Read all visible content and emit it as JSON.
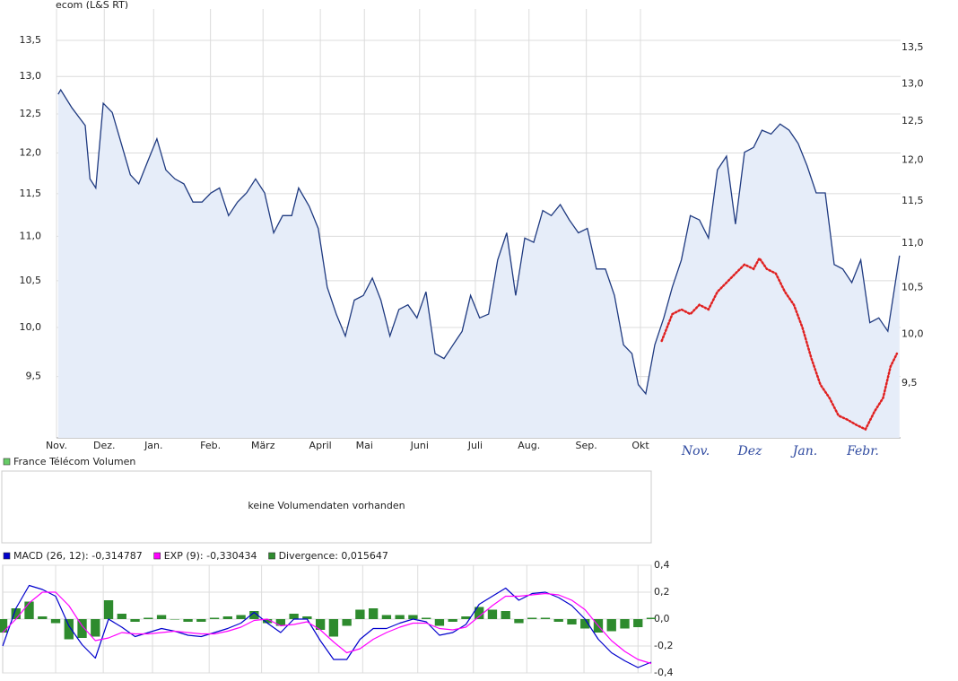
{
  "chart_data": [
    {
      "type": "line",
      "title": "ecom (L&S RT)",
      "log_scale": true,
      "grid": true,
      "xlim": [
        0,
        15.9
      ],
      "ylim": [
        8.91,
        13.95
      ],
      "y2lim": [
        8.97,
        14.06
      ],
      "yticks": [
        {
          "value": 9.5,
          "label": "9,5"
        },
        {
          "value": 10,
          "label": "10,0"
        },
        {
          "value": 10.5,
          "label": "10,5"
        },
        {
          "value": 11,
          "label": "11,0"
        },
        {
          "value": 11.5,
          "label": "11,5"
        },
        {
          "value": 12,
          "label": "12,0"
        },
        {
          "value": 12.5,
          "label": "12,5"
        },
        {
          "value": 13,
          "label": "13,0"
        },
        {
          "value": 13.5,
          "label": "13,5"
        }
      ],
      "y2ticks": [
        {
          "value": 9.5,
          "label": "9,5"
        },
        {
          "value": 10,
          "label": "10,0"
        },
        {
          "value": 10.5,
          "label": "10,5"
        },
        {
          "value": 11,
          "label": "11,0"
        },
        {
          "value": 11.5,
          "label": "11,5"
        },
        {
          "value": 12,
          "label": "12,0"
        },
        {
          "value": 12.5,
          "label": "12,5"
        },
        {
          "value": 13,
          "label": "13,0"
        },
        {
          "value": 13.5,
          "label": "13,5"
        }
      ],
      "xticks": [
        {
          "value": 0,
          "label": "Nov."
        },
        {
          "value": 0.9,
          "label": "Dez."
        },
        {
          "value": 1.83,
          "label": "Jan."
        },
        {
          "value": 2.9,
          "label": "Feb."
        },
        {
          "value": 3.89,
          "label": "März"
        },
        {
          "value": 4.97,
          "label": "April"
        },
        {
          "value": 5.8,
          "label": "Mai"
        },
        {
          "value": 6.84,
          "label": "Juni"
        },
        {
          "value": 7.89,
          "label": "Juli"
        },
        {
          "value": 8.9,
          "label": "Aug."
        },
        {
          "value": 9.98,
          "label": "Sep."
        },
        {
          "value": 11,
          "label": "Okt"
        }
      ],
      "handwritten_xticks": [
        {
          "value": 12.04,
          "label": "Nov."
        },
        {
          "value": 13.06,
          "label": "Dez"
        },
        {
          "value": 14.1,
          "label": "Jan."
        },
        {
          "value": 15.19,
          "label": "Febr."
        }
      ],
      "x": [
        0.03,
        0.08,
        0.29,
        0.54,
        0.63,
        0.74,
        0.88,
        1.05,
        1.22,
        1.39,
        1.55,
        1.72,
        1.89,
        2.06,
        2.23,
        2.4,
        2.57,
        2.74,
        2.91,
        3.07,
        3.24,
        3.41,
        3.58,
        3.75,
        3.92,
        4.09,
        4.26,
        4.43,
        4.56,
        4.76,
        4.93,
        5.1,
        5.27,
        5.44,
        5.61,
        5.78,
        5.95,
        6.11,
        6.28,
        6.45,
        6.62,
        6.79,
        6.96,
        7.13,
        7.3,
        7.47,
        7.64,
        7.8,
        7.97,
        8.14,
        8.31,
        8.48,
        8.65,
        8.82,
        8.99,
        9.16,
        9.32,
        9.49,
        9.66,
        9.83,
        10.0,
        10.17,
        10.34,
        10.51,
        10.68,
        10.84,
        10.96,
        11.1,
        11.27,
        11.44,
        11.6,
        11.77,
        11.94,
        12.11,
        12.28,
        12.45,
        12.62,
        12.79,
        12.96,
        13.13,
        13.29,
        13.46,
        13.63,
        13.8,
        13.97,
        14.14,
        14.31,
        14.48,
        14.65,
        14.81,
        14.98,
        15.15,
        15.32,
        15.49,
        15.66,
        15.88
      ],
      "series": [
        {
          "color": "#1f3a80",
          "fill": "#e6edf9",
          "values": [
            12.76,
            12.82,
            12.58,
            12.35,
            11.68,
            11.57,
            12.64,
            12.52,
            12.12,
            11.73,
            11.62,
            11.9,
            12.18,
            11.79,
            11.68,
            11.62,
            11.4,
            11.4,
            11.51,
            11.57,
            11.24,
            11.4,
            11.51,
            11.68,
            11.51,
            11.04,
            11.24,
            11.24,
            11.57,
            11.35,
            11.09,
            10.43,
            10.14,
            9.91,
            10.29,
            10.34,
            10.53,
            10.29,
            9.91,
            10.19,
            10.24,
            10.1,
            10.38,
            9.73,
            9.68,
            9.82,
            9.96,
            10.34,
            10.1,
            10.14,
            10.73,
            11.04,
            10.34,
            10.98,
            10.93,
            11.3,
            11.24,
            11.37,
            11.19,
            11.04,
            11.09,
            10.63,
            10.63,
            10.34,
            9.82,
            9.73,
            9.42,
            9.33,
            9.82,
            10.1,
            10.43,
            10.73,
            11.24,
            11.19,
            10.98,
            11.79,
            11.96,
            11.14,
            12.01,
            12.07,
            12.29,
            12.24,
            12.37,
            12.29,
            12.12,
            11.84,
            11.51,
            11.51,
            10.68,
            10.63,
            10.48,
            10.73,
            10.05,
            10.1,
            9.96,
            10.78
          ]
        },
        {
          "color": "#e02020",
          "style": "dotted",
          "x": [
            11.4,
            11.6,
            11.77,
            11.94,
            12.11,
            12.28,
            12.45,
            12.62,
            12.79,
            12.96,
            13.13,
            13.24,
            13.38,
            13.55,
            13.72,
            13.89,
            14.05,
            14.22,
            14.39,
            14.56,
            14.73,
            14.9,
            15.07,
            15.24,
            15.41,
            15.57,
            15.71,
            15.83
          ],
          "values": [
            9.86,
            10.14,
            10.19,
            10.14,
            10.24,
            10.19,
            10.38,
            10.48,
            10.58,
            10.68,
            10.63,
            10.75,
            10.63,
            10.58,
            10.38,
            10.24,
            10.0,
            9.68,
            9.42,
            9.29,
            9.12,
            9.08,
            9.03,
            8.99,
            9.16,
            9.29,
            9.6,
            9.73
          ]
        }
      ]
    },
    {
      "type": "message",
      "legend": [
        {
          "name": "France Télécom Volumen",
          "color": "#66cc66"
        }
      ],
      "message": "keine Volumendaten vorhanden"
    },
    {
      "type": "macd",
      "grid": true,
      "xlim": [
        -1.0,
        11.25
      ],
      "ylim": [
        -0.4,
        0.4
      ],
      "yticks": [
        {
          "value": -0.4,
          "label": "-0,4"
        },
        {
          "value": -0.2,
          "label": "-0,2"
        },
        {
          "value": 0,
          "label": "0,0"
        },
        {
          "value": 0.2,
          "label": "0,2"
        },
        {
          "value": 0.4,
          "label": "0,4"
        }
      ],
      "x": [
        -1,
        -0.75,
        -0.5,
        -0.25,
        0,
        0.25,
        0.5,
        0.75,
        1,
        1.25,
        1.5,
        1.75,
        2,
        2.25,
        2.5,
        2.75,
        3,
        3.25,
        3.5,
        3.75,
        4,
        4.25,
        4.5,
        4.75,
        5,
        5.25,
        5.5,
        5.75,
        6,
        6.25,
        6.5,
        6.75,
        7,
        7.25,
        7.5,
        7.75,
        8,
        8.25,
        8.5,
        8.75,
        9,
        9.25,
        9.5,
        9.75,
        10,
        10.25,
        10.5,
        10.75,
        11,
        11.25
      ],
      "series": [
        {
          "name": "MACD (26, 12): -0,314787",
          "type": "line",
          "color": "#0000cc",
          "values": [
            -0.2,
            0.08,
            0.25,
            0.22,
            0.17,
            -0.05,
            -0.19,
            -0.29,
            0.0,
            -0.06,
            -0.13,
            -0.1,
            -0.07,
            -0.09,
            -0.12,
            -0.13,
            -0.1,
            -0.07,
            -0.03,
            0.05,
            -0.03,
            -0.1,
            0.0,
            0.0,
            -0.16,
            -0.3,
            -0.3,
            -0.15,
            -0.07,
            -0.07,
            -0.03,
            0.0,
            -0.02,
            -0.12,
            -0.1,
            -0.04,
            0.11,
            0.17,
            0.23,
            0.14,
            0.19,
            0.2,
            0.16,
            0.1,
            0.0,
            -0.15,
            -0.25,
            -0.31,
            -0.36,
            -0.32
          ]
        },
        {
          "name": "EXP (9): -0,330434",
          "type": "line",
          "color": "#ff00ff",
          "values": [
            -0.1,
            0.0,
            0.12,
            0.2,
            0.2,
            0.1,
            -0.05,
            -0.16,
            -0.14,
            -0.1,
            -0.11,
            -0.11,
            -0.1,
            -0.09,
            -0.1,
            -0.11,
            -0.11,
            -0.09,
            -0.06,
            -0.01,
            0.0,
            -0.05,
            -0.04,
            -0.02,
            -0.08,
            -0.17,
            -0.25,
            -0.22,
            -0.15,
            -0.1,
            -0.06,
            -0.03,
            -0.03,
            -0.07,
            -0.08,
            -0.06,
            0.02,
            0.1,
            0.17,
            0.17,
            0.18,
            0.19,
            0.18,
            0.14,
            0.07,
            -0.05,
            -0.16,
            -0.24,
            -0.3,
            -0.33
          ]
        },
        {
          "name": "Divergence: 0,015647",
          "type": "bar",
          "color": "#2e8b2e",
          "values": [
            -0.1,
            0.08,
            0.13,
            0.02,
            -0.03,
            -0.15,
            -0.14,
            -0.13,
            0.14,
            0.04,
            -0.02,
            0.01,
            0.03,
            0.0,
            -0.02,
            -0.02,
            0.01,
            0.02,
            0.03,
            0.06,
            -0.03,
            -0.05,
            0.04,
            0.02,
            -0.08,
            -0.13,
            -0.05,
            0.07,
            0.08,
            0.03,
            0.03,
            0.03,
            0.01,
            -0.05,
            -0.02,
            0.02,
            0.09,
            0.07,
            0.06,
            -0.03,
            0.01,
            0.01,
            -0.02,
            -0.04,
            -0.07,
            -0.1,
            -0.09,
            -0.07,
            -0.06,
            0.01
          ]
        }
      ]
    }
  ]
}
